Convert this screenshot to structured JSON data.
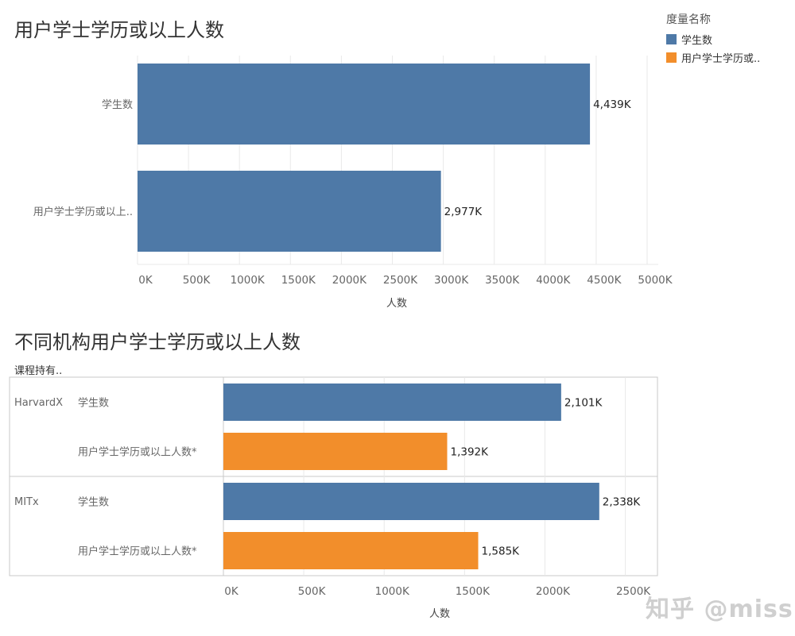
{
  "colors": {
    "blue": "#4e79a7",
    "orange": "#f28e2b",
    "grid": "#e9e9e9",
    "frame": "#c8c8c8"
  },
  "legend": {
    "title": "度量名称",
    "items": [
      {
        "label": "学生数",
        "color": "#4e79a7"
      },
      {
        "label": "用户学士学历或..",
        "color": "#f28e2b"
      }
    ]
  },
  "chart1": {
    "title": "用户学士学历或以上人数",
    "axis_title": "人数"
  },
  "chart2": {
    "title": "不同机构用户学士学历或以上人数",
    "row_header": "课程持有..",
    "axis_title": "人数"
  },
  "watermark": "知乎 @miss",
  "chart_data": [
    {
      "type": "bar",
      "orientation": "horizontal",
      "title": "用户学士学历或以上人数",
      "categories": [
        "学生数",
        "用户学士学历或以上.."
      ],
      "values": [
        4439,
        2977
      ],
      "value_labels": [
        "4,439K",
        "2,977K"
      ],
      "colors": [
        "#4e79a7",
        "#4e79a7"
      ],
      "xlabel": "人数",
      "xlim": [
        0,
        5000
      ],
      "xticks": [
        "0K",
        "500K",
        "1000K",
        "1500K",
        "2000K",
        "2500K",
        "3000K",
        "3500K",
        "4000K",
        "4500K",
        "5000K"
      ],
      "grid": true
    },
    {
      "type": "bar",
      "orientation": "horizontal",
      "title": "不同机构用户学士学历或以上人数",
      "groups": [
        "HarvardX",
        "MITx"
      ],
      "categories": [
        "学生数",
        "用户学士学历或以上人数*"
      ],
      "series": [
        {
          "name": "学生数",
          "values": [
            2101,
            2338
          ],
          "value_labels": [
            "2,101K",
            "2,338K"
          ],
          "color": "#4e79a7"
        },
        {
          "name": "用户学士学历或..",
          "values": [
            1392,
            1585
          ],
          "value_labels": [
            "1,392K",
            "1,585K"
          ],
          "color": "#f28e2b"
        }
      ],
      "xlabel": "人数",
      "xlim": [
        0,
        2700
      ],
      "xticks": [
        "0K",
        "500K",
        "1000K",
        "1500K",
        "2000K",
        "2500K"
      ],
      "grid": true
    }
  ]
}
